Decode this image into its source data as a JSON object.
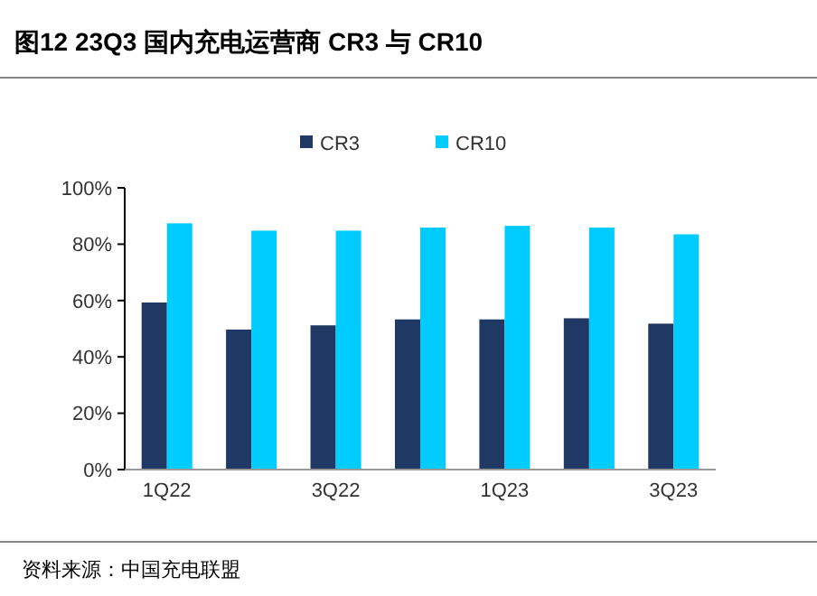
{
  "chart_data": {
    "type": "bar",
    "title": "图12 23Q3 国内充电运营商 CR3 与 CR10",
    "categories": [
      "1Q22",
      null,
      "3Q22",
      null,
      "1Q23",
      null,
      "3Q23"
    ],
    "series": [
      {
        "name": "CR3",
        "color": "#203864",
        "values": [
          59.3,
          49.7,
          51.2,
          53.3,
          53.3,
          53.7,
          51.8
        ]
      },
      {
        "name": "CR10",
        "color": "#00ccff",
        "values": [
          87.4,
          84.8,
          84.8,
          85.9,
          86.5,
          85.9,
          83.5
        ]
      }
    ],
    "ylim": [
      0,
      100
    ],
    "yticks": [
      {
        "value": 0,
        "label": "0%"
      },
      {
        "value": 20,
        "label": "20%"
      },
      {
        "value": 40,
        "label": "40%"
      },
      {
        "value": 60,
        "label": "60%"
      },
      {
        "value": 80,
        "label": "80%"
      },
      {
        "value": 100,
        "label": "100%"
      }
    ],
    "grid": false,
    "legend": "top",
    "annotations": [
      "资料来源：中国充电联盟"
    ]
  }
}
